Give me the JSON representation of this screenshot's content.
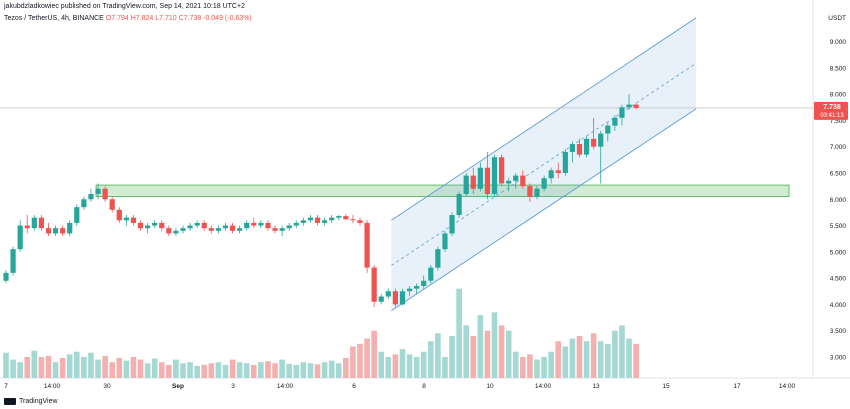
{
  "header": {
    "published": "jakubdzladkowiec published on TradingView.com, Sep 14, 2021 10:18 UTC+2",
    "symbol": "Tezos / TetherUS, 4h, BINANCE",
    "ohlc": "O7.794 H7.824 L7.710 C7.738 -0.049 (-0.63%)"
  },
  "logo": {
    "text": "TradingView",
    "icon": "tradingview-logo-icon"
  },
  "colors": {
    "up": "#26a69a",
    "down": "#ef5350",
    "upVol": "#a4d8d2",
    "downVol": "#f3b0ae",
    "channel": "#5b9bd5",
    "zone": "#4caf50"
  },
  "chart_data": {
    "type": "candlestick",
    "unit": "USDT",
    "price_label": "7.738",
    "countdown": "03:41:13",
    "ylim": [
      2.6,
      9.6
    ],
    "y_ticks": [
      "9.000",
      "8.500",
      "8.000",
      "7.500",
      "7.000",
      "6.500",
      "6.000",
      "5.500",
      "5.000",
      "4.500",
      "4.000",
      "3.500",
      "3.000"
    ],
    "x_ticks": [
      "7",
      "14:00",
      "30",
      "Sep",
      "3",
      "14:00",
      "6",
      "8",
      "10",
      "14:00",
      "13",
      "15",
      "17",
      "14:00"
    ],
    "annotations": {
      "support_zone": [
        6.05,
        6.27
      ],
      "ascending_channel": {
        "lower": [
          [
            4.0,
            3.88
          ],
          [
            7.75,
            7.7
          ]
        ],
        "upper": [
          [
            5.65,
            5.6
          ],
          [
            9.45,
            9.45
          ]
        ]
      }
    },
    "candles": [
      [
        4.45,
        4.65,
        4.4,
        4.6
      ],
      [
        4.6,
        5.1,
        4.55,
        5.05
      ],
      [
        5.05,
        5.6,
        5.0,
        5.5
      ],
      [
        5.5,
        5.7,
        5.35,
        5.45
      ],
      [
        5.45,
        5.7,
        5.4,
        5.65
      ],
      [
        5.65,
        5.7,
        5.4,
        5.45
      ],
      [
        5.45,
        5.55,
        5.3,
        5.35
      ],
      [
        5.35,
        5.5,
        5.3,
        5.45
      ],
      [
        5.45,
        5.5,
        5.3,
        5.35
      ],
      [
        5.35,
        5.6,
        5.3,
        5.55
      ],
      [
        5.55,
        5.9,
        5.5,
        5.85
      ],
      [
        5.85,
        6.05,
        5.8,
        6.0
      ],
      [
        6.0,
        6.2,
        5.95,
        6.1
      ],
      [
        6.1,
        6.3,
        6.0,
        6.2
      ],
      [
        6.2,
        6.25,
        5.95,
        6.0
      ],
      [
        6.0,
        6.05,
        5.75,
        5.8
      ],
      [
        5.8,
        5.85,
        5.55,
        5.6
      ],
      [
        5.6,
        5.7,
        5.5,
        5.65
      ],
      [
        5.65,
        5.7,
        5.5,
        5.55
      ],
      [
        5.55,
        5.6,
        5.4,
        5.45
      ],
      [
        5.45,
        5.55,
        5.35,
        5.5
      ],
      [
        5.5,
        5.6,
        5.45,
        5.55
      ],
      [
        5.55,
        5.6,
        5.4,
        5.45
      ],
      [
        5.45,
        5.5,
        5.3,
        5.35
      ],
      [
        5.35,
        5.45,
        5.3,
        5.4
      ],
      [
        5.4,
        5.5,
        5.35,
        5.45
      ],
      [
        5.45,
        5.55,
        5.4,
        5.5
      ],
      [
        5.5,
        5.6,
        5.45,
        5.55
      ],
      [
        5.55,
        5.6,
        5.4,
        5.45
      ],
      [
        5.45,
        5.5,
        5.35,
        5.4
      ],
      [
        5.4,
        5.5,
        5.35,
        5.45
      ],
      [
        5.45,
        5.55,
        5.4,
        5.5
      ],
      [
        5.5,
        5.55,
        5.35,
        5.4
      ],
      [
        5.4,
        5.5,
        5.35,
        5.45
      ],
      [
        5.45,
        5.6,
        5.4,
        5.55
      ],
      [
        5.55,
        5.65,
        5.45,
        5.5
      ],
      [
        5.5,
        5.6,
        5.45,
        5.55
      ],
      [
        5.55,
        5.6,
        5.4,
        5.45
      ],
      [
        5.45,
        5.5,
        5.35,
        5.4
      ],
      [
        5.4,
        5.5,
        5.3,
        5.45
      ],
      [
        5.45,
        5.55,
        5.4,
        5.5
      ],
      [
        5.5,
        5.6,
        5.45,
        5.55
      ],
      [
        5.55,
        5.65,
        5.5,
        5.6
      ],
      [
        5.6,
        5.7,
        5.55,
        5.65
      ],
      [
        5.65,
        5.7,
        5.5,
        5.55
      ],
      [
        5.55,
        5.65,
        5.5,
        5.6
      ],
      [
        5.6,
        5.7,
        5.55,
        5.65
      ],
      [
        5.65,
        5.7,
        5.6,
        5.68
      ],
      [
        5.68,
        5.72,
        5.6,
        5.62
      ],
      [
        5.62,
        5.7,
        5.55,
        5.6
      ],
      [
        5.6,
        5.65,
        5.5,
        5.55
      ],
      [
        5.55,
        5.6,
        4.6,
        4.7
      ],
      [
        4.7,
        4.75,
        3.95,
        4.05
      ],
      [
        4.05,
        4.2,
        4.0,
        4.15
      ],
      [
        4.15,
        4.3,
        4.1,
        4.25
      ],
      [
        4.25,
        4.3,
        3.95,
        4.0
      ],
      [
        4.0,
        4.3,
        3.98,
        4.25
      ],
      [
        4.25,
        4.35,
        4.15,
        4.3
      ],
      [
        4.3,
        4.4,
        4.2,
        4.35
      ],
      [
        4.35,
        4.55,
        4.3,
        4.45
      ],
      [
        4.45,
        4.75,
        4.4,
        4.7
      ],
      [
        4.7,
        5.1,
        4.65,
        5.05
      ],
      [
        5.05,
        5.4,
        5.0,
        5.35
      ],
      [
        5.35,
        5.75,
        5.3,
        5.7
      ],
      [
        5.7,
        6.15,
        5.65,
        6.1
      ],
      [
        6.1,
        6.5,
        6.05,
        6.45
      ],
      [
        6.45,
        6.6,
        6.1,
        6.2
      ],
      [
        6.2,
        6.7,
        6.15,
        6.6
      ],
      [
        6.6,
        6.9,
        6.0,
        6.1
      ],
      [
        6.1,
        6.85,
        6.05,
        6.8
      ],
      [
        6.8,
        6.85,
        6.25,
        6.3
      ],
      [
        6.3,
        6.4,
        6.15,
        6.35
      ],
      [
        6.35,
        6.5,
        6.2,
        6.45
      ],
      [
        6.45,
        6.55,
        6.2,
        6.25
      ],
      [
        6.25,
        6.3,
        5.95,
        6.05
      ],
      [
        6.05,
        6.25,
        6.0,
        6.2
      ],
      [
        6.2,
        6.45,
        6.15,
        6.4
      ],
      [
        6.4,
        6.6,
        6.3,
        6.55
      ],
      [
        6.55,
        6.7,
        6.4,
        6.5
      ],
      [
        6.5,
        6.95,
        6.45,
        6.9
      ],
      [
        6.9,
        7.1,
        6.7,
        7.05
      ],
      [
        7.05,
        7.15,
        6.8,
        6.85
      ],
      [
        6.85,
        7.2,
        6.8,
        7.15
      ],
      [
        7.15,
        7.55,
        6.95,
        7.0
      ],
      [
        7.0,
        7.3,
        6.3,
        7.25
      ],
      [
        7.25,
        7.45,
        7.1,
        7.4
      ],
      [
        7.4,
        7.6,
        7.3,
        7.55
      ],
      [
        7.55,
        7.8,
        7.4,
        7.75
      ],
      [
        7.75,
        8.0,
        7.7,
        7.8
      ],
      [
        7.8,
        7.824,
        7.71,
        7.738
      ]
    ],
    "volumes": [
      3.08,
      2.95,
      2.9,
      3.0,
      3.12,
      3.0,
      3.02,
      2.9,
      2.98,
      3.05,
      3.1,
      3.0,
      3.08,
      2.95,
      3.02,
      2.9,
      2.98,
      2.93,
      3.0,
      2.95,
      2.88,
      2.97,
      2.9,
      2.85,
      2.95,
      2.88,
      2.9,
      2.83,
      2.85,
      2.88,
      2.9,
      2.85,
      2.95,
      2.9,
      2.88,
      2.85,
      2.9,
      2.92,
      2.88,
      2.95,
      2.87,
      2.85,
      2.9,
      2.88,
      2.86,
      2.9,
      2.93,
      2.88,
      2.98,
      3.2,
      3.25,
      3.35,
      3.5,
      3.1,
      3.0,
      3.05,
      3.15,
      3.05,
      3.0,
      3.1,
      3.3,
      3.45,
      3.0,
      3.4,
      4.3,
      3.6,
      3.4,
      3.8,
      3.5,
      3.85,
      3.6,
      3.5,
      3.1,
      3.0,
      3.05,
      2.95,
      3.0,
      3.1,
      3.3,
      3.2,
      3.35,
      3.4,
      3.3,
      3.45,
      3.3,
      3.25,
      3.5,
      3.6,
      3.35,
      3.25
    ]
  }
}
